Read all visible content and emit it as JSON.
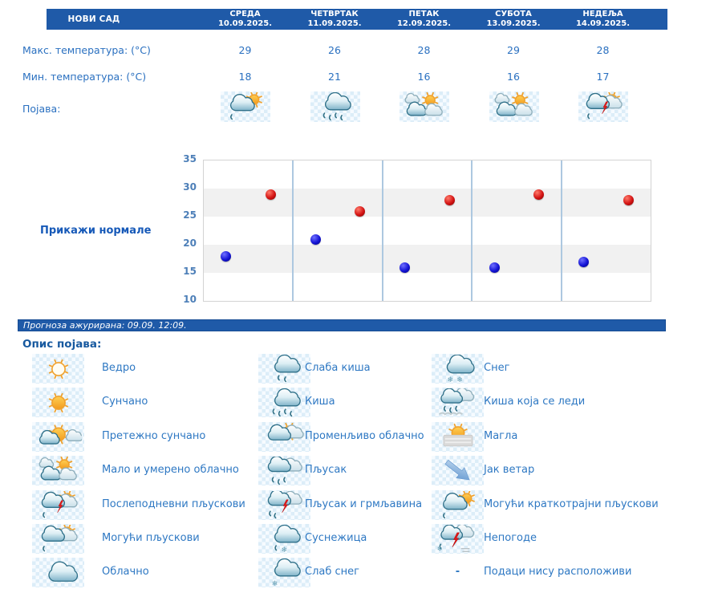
{
  "header": {
    "city": "НОВИ САД",
    "days": [
      {
        "name": "СРЕДА",
        "date": "10.09.2025."
      },
      {
        "name": "ЧЕТВРТАК",
        "date": "11.09.2025."
      },
      {
        "name": "ПЕТАК",
        "date": "12.09.2025."
      },
      {
        "name": "СУБОТА",
        "date": "13.09.2025."
      },
      {
        "name": "НЕДЕЉА",
        "date": "14.09.2025."
      }
    ]
  },
  "table": {
    "max_label": "Макс. температура: (°C)",
    "min_label": "Мин. температура: (°C)",
    "phenomena_label": "Појава:",
    "max_values": [
      "29",
      "26",
      "28",
      "29",
      "28"
    ],
    "min_values": [
      "18",
      "21",
      "16",
      "16",
      "17"
    ],
    "phenomena_icons": [
      "moguci-kratkotrajni-pljuskovi",
      "kisa",
      "malo-umereno-oblacno",
      "malo-umereno-oblacno",
      "poslepodnevni-pljuskovi"
    ]
  },
  "chart": {
    "show_normals_label": "Прикажи нормале"
  },
  "chart_data": {
    "type": "scatter",
    "x_categories": [
      "СРЕДА 10.09.2025.",
      "ЧЕТВРТАК 11.09.2025.",
      "ПЕТАК 12.09.2025.",
      "СУБОТА 13.09.2025.",
      "НЕДЕЉА 14.09.2025."
    ],
    "series": [
      {
        "name": "Максимална температура (°C)",
        "color": "#d41414",
        "values": [
          29,
          26,
          28,
          29,
          28
        ]
      },
      {
        "name": "Минимална температура (°C)",
        "color": "#1414d6",
        "values": [
          18,
          21,
          16,
          16,
          17
        ]
      }
    ],
    "ylim": [
      10,
      35
    ],
    "yticks": [
      35,
      30,
      25,
      20,
      15,
      10
    ],
    "shaded_bands": [
      [
        15,
        20
      ],
      [
        25,
        30
      ]
    ],
    "grid": "horizontal bands + vertical day separators",
    "legend_position": "none"
  },
  "update_bar": {
    "text": "Прогноза ажурирана:  09.09. 12:09."
  },
  "legend": {
    "title": "Опис појава:",
    "columns": [
      [
        {
          "icon": "vedro",
          "label": "Ведро"
        },
        {
          "icon": "suncano",
          "label": "Сунчано"
        },
        {
          "icon": "pretezno-suncano",
          "label": "Претежно сунчано"
        },
        {
          "icon": "malo-umereno-oblacno",
          "label": "Мало и умерено облачно"
        },
        {
          "icon": "poslepodnevni-pljuskovi",
          "label": "Послеподневни пљускови"
        },
        {
          "icon": "moguci-pljuskovi",
          "label": "Могући пљускови"
        },
        {
          "icon": "oblacno",
          "label": "Облачно"
        }
      ],
      [
        {
          "icon": "slaba-kisa",
          "label": "Слаба киша"
        },
        {
          "icon": "kisa",
          "label": "Киша"
        },
        {
          "icon": "promenljivo-oblacno",
          "label": "Променљиво облачно"
        },
        {
          "icon": "pljusak",
          "label": "Пљусак"
        },
        {
          "icon": "pljusak-i-grmljavina",
          "label": "Пљусак и грмљавина"
        },
        {
          "icon": "susnezica",
          "label": "Суснежица"
        },
        {
          "icon": "slab-sneg",
          "label": "Слаб снег"
        }
      ],
      [
        {
          "icon": "sneg",
          "label": "Снег"
        },
        {
          "icon": "kisa-koja-se-ledi",
          "label": "Киша која се леди"
        },
        {
          "icon": "magla",
          "label": "Магла"
        },
        {
          "icon": "jak-vetar",
          "label": "Јак ветар"
        },
        {
          "icon": "moguci-kratkotrajni-pljuskovi",
          "label": "Могући краткотрајни пљускови"
        },
        {
          "icon": "nepogode",
          "label": "Непогоде"
        },
        {
          "icon": "none",
          "dash": "-",
          "label": "Подаци нису расположиви"
        }
      ]
    ]
  },
  "colors": {
    "header_bg": "#1f5aa8",
    "max_dot": "#d41414",
    "min_dot": "#1414d6",
    "text_blue": "#2a70c0",
    "link_blue": "#1659b8"
  }
}
